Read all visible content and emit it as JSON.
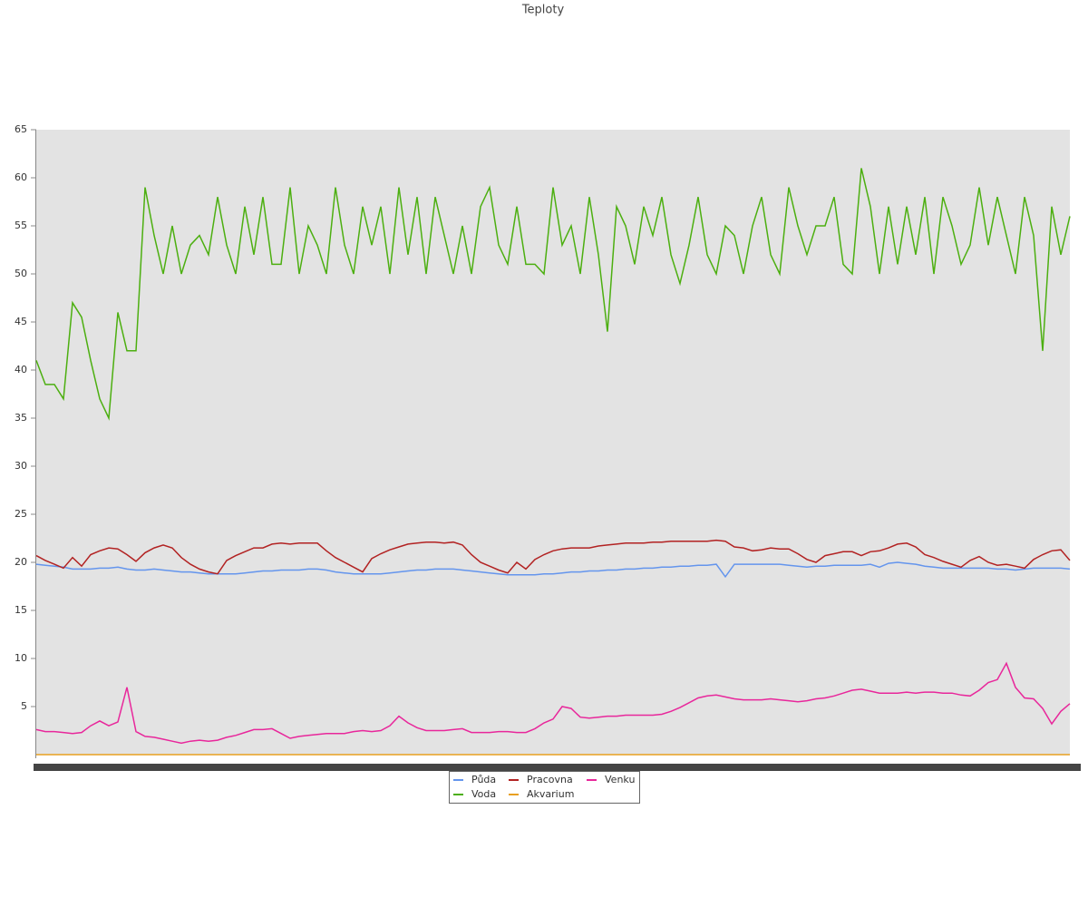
{
  "chart_data": {
    "type": "line",
    "title": "Teploty",
    "categories": [
      null,
      null,
      null,
      null,
      null,
      null,
      null,
      null,
      null,
      null,
      null,
      null,
      null,
      null,
      null,
      null,
      null,
      null,
      null,
      null,
      null,
      null,
      null,
      null,
      null,
      null,
      null,
      null,
      null,
      null,
      null,
      null,
      null,
      null,
      null,
      null,
      null,
      null,
      null,
      null,
      null,
      null,
      null,
      null,
      null,
      null,
      null,
      null,
      null,
      null,
      null,
      null,
      null,
      null,
      null,
      null,
      null,
      null,
      null,
      null,
      null,
      null,
      null,
      null,
      null,
      null,
      null,
      null,
      null,
      null,
      null,
      null,
      null,
      null,
      null,
      null,
      null,
      null,
      null,
      null,
      null,
      null,
      null,
      null,
      null,
      null,
      null,
      null,
      null,
      null,
      null,
      null,
      null,
      null,
      null,
      null,
      null,
      null,
      null,
      null,
      null,
      null,
      null,
      null,
      null,
      null,
      null,
      null,
      null,
      null,
      null,
      null,
      null,
      null,
      null
    ],
    "ylim": [
      0,
      65
    ],
    "yticks": [
      5,
      10,
      15,
      20,
      25,
      30,
      35,
      40,
      45,
      50,
      55,
      60,
      65
    ],
    "series": [
      {
        "name": "Půda",
        "color": "#6495ed",
        "values": [
          19.8,
          19.7,
          19.6,
          19.5,
          19.3,
          19.3,
          19.3,
          19.4,
          19.4,
          19.5,
          19.3,
          19.2,
          19.2,
          19.3,
          19.2,
          19.1,
          19.0,
          19.0,
          18.9,
          18.8,
          18.8,
          18.8,
          18.8,
          18.9,
          19.0,
          19.1,
          19.1,
          19.2,
          19.2,
          19.2,
          19.3,
          19.3,
          19.2,
          19.0,
          18.9,
          18.8,
          18.8,
          18.8,
          18.8,
          18.9,
          19.0,
          19.1,
          19.2,
          19.2,
          19.3,
          19.3,
          19.3,
          19.2,
          19.1,
          19.0,
          18.9,
          18.8,
          18.7,
          18.7,
          18.7,
          18.7,
          18.8,
          18.8,
          18.9,
          19.0,
          19.0,
          19.1,
          19.1,
          19.2,
          19.2,
          19.3,
          19.3,
          19.4,
          19.4,
          19.5,
          19.5,
          19.6,
          19.6,
          19.7,
          19.7,
          19.8,
          18.5,
          19.8,
          19.8,
          19.8,
          19.8,
          19.8,
          19.8,
          19.7,
          19.6,
          19.5,
          19.6,
          19.6,
          19.7,
          19.7,
          19.7,
          19.7,
          19.8,
          19.5,
          19.9,
          20.0,
          19.9,
          19.8,
          19.6,
          19.5,
          19.4,
          19.4,
          19.4,
          19.4,
          19.4,
          19.4,
          19.3,
          19.3,
          19.2,
          19.3,
          19.4,
          19.4,
          19.4,
          19.4,
          19.3
        ]
      },
      {
        "name": "Pracovna",
        "color": "#b22222",
        "values": [
          20.7,
          20.2,
          19.8,
          19.4,
          20.5,
          19.6,
          20.8,
          21.2,
          21.5,
          21.4,
          20.8,
          20.1,
          21,
          21.5,
          21.8,
          21.5,
          20.5,
          19.8,
          19.3,
          19,
          18.8,
          20.2,
          20.7,
          21.1,
          21.5,
          21.5,
          21.9,
          22,
          21.9,
          22,
          22,
          22,
          21.2,
          20.5,
          20,
          19.5,
          19,
          20.4,
          20.9,
          21.3,
          21.6,
          21.9,
          22,
          22.1,
          22.1,
          22,
          22.1,
          21.8,
          20.8,
          20,
          19.6,
          19.2,
          18.9,
          20,
          19.3,
          20.3,
          20.8,
          21.2,
          21.4,
          21.5,
          21.5,
          21.5,
          21.7,
          21.8,
          21.9,
          22,
          22,
          22,
          22.1,
          22.1,
          22.2,
          22.2,
          22.2,
          22.2,
          22.2,
          22.3,
          22.2,
          21.6,
          21.5,
          21.2,
          21.3,
          21.5,
          21.4,
          21.4,
          20.9,
          20.3,
          20,
          20.7,
          20.9,
          21.1,
          21.1,
          20.7,
          21.1,
          21.2,
          21.5,
          21.9,
          22,
          21.6,
          20.8,
          20.5,
          20.1,
          19.8,
          19.5,
          20.2,
          20.6,
          20,
          19.7,
          19.8,
          19.6,
          19.4,
          20.3,
          20.8,
          21.2,
          21.3,
          20.2
        ]
      },
      {
        "name": "Venku",
        "color": "#e8279b",
        "values": [
          2.6,
          2.4,
          2.4,
          2.3,
          2.2,
          2.3,
          3.0,
          3.5,
          3.0,
          3.4,
          7.0,
          2.4,
          1.9,
          1.8,
          1.6,
          1.4,
          1.2,
          1.4,
          1.5,
          1.4,
          1.5,
          1.8,
          2.0,
          2.3,
          2.6,
          2.6,
          2.7,
          2.2,
          1.7,
          1.9,
          2.0,
          2.1,
          2.2,
          2.2,
          2.2,
          2.4,
          2.5,
          2.4,
          2.5,
          3.0,
          4.0,
          3.3,
          2.8,
          2.5,
          2.5,
          2.5,
          2.6,
          2.7,
          2.3,
          2.3,
          2.3,
          2.4,
          2.4,
          2.3,
          2.3,
          2.7,
          3.3,
          3.7,
          5.0,
          4.8,
          3.9,
          3.8,
          3.9,
          4.0,
          4.0,
          4.1,
          4.1,
          4.1,
          4.1,
          4.2,
          4.5,
          4.9,
          5.4,
          5.9,
          6.1,
          6.2,
          6.0,
          5.8,
          5.7,
          5.7,
          5.7,
          5.8,
          5.7,
          5.6,
          5.5,
          5.6,
          5.8,
          5.9,
          6.1,
          6.4,
          6.7,
          6.8,
          6.6,
          6.4,
          6.4,
          6.4,
          6.5,
          6.4,
          6.5,
          6.5,
          6.4,
          6.4,
          6.2,
          6.1,
          6.7,
          7.5,
          7.8,
          9.5,
          7.0,
          5.9,
          5.8,
          4.8,
          3.2,
          4.5,
          5.3
        ]
      },
      {
        "name": "Voda",
        "color": "#4caf10",
        "values": [
          41,
          38.5,
          38.5,
          37,
          47,
          45.5,
          41,
          37,
          35,
          46,
          42,
          42,
          59,
          54,
          50,
          55,
          50,
          53,
          54,
          52,
          58,
          53,
          50,
          57,
          52,
          58,
          51,
          51,
          59,
          50,
          55,
          53,
          50,
          59,
          53,
          50,
          57,
          53,
          57,
          50,
          59,
          52,
          58,
          50,
          58,
          54,
          50,
          55,
          50,
          57,
          59,
          53,
          51,
          57,
          51,
          51,
          50,
          59,
          53,
          55,
          50,
          58,
          52,
          44,
          57,
          55,
          51,
          57,
          54,
          58,
          52,
          49,
          53,
          58,
          52,
          50,
          55,
          54,
          50,
          55,
          58,
          52,
          50,
          59,
          55,
          52,
          55,
          55,
          58,
          51,
          50,
          61,
          57,
          50,
          57,
          51,
          57,
          52,
          58,
          50,
          58,
          55,
          51,
          53,
          59,
          53,
          58,
          54,
          50,
          58,
          54,
          42,
          57,
          52,
          56
        ]
      },
      {
        "name": "Akvarium",
        "color": "#e8a020",
        "values": [
          0,
          0,
          0,
          0,
          0,
          0,
          0,
          0,
          0,
          0,
          0,
          0,
          0,
          0,
          0,
          0,
          0,
          0,
          0,
          0,
          0,
          0,
          0,
          0,
          0,
          0,
          0,
          0,
          0,
          0,
          0,
          0,
          0,
          0,
          0,
          0,
          0,
          0,
          0,
          0,
          0,
          0,
          0,
          0,
          0,
          0,
          0,
          0,
          0,
          0,
          0,
          0,
          0,
          0,
          0,
          0,
          0,
          0,
          0,
          0,
          0,
          0,
          0,
          0,
          0,
          0,
          0,
          0,
          0,
          0,
          0,
          0,
          0,
          0,
          0,
          0,
          0,
          0,
          0,
          0,
          0,
          0,
          0,
          0,
          0,
          0,
          0,
          0,
          0,
          0,
          0,
          0,
          0,
          0,
          0,
          0,
          0,
          0,
          0,
          0,
          0,
          0,
          0,
          0,
          0,
          0,
          0,
          0,
          0,
          0,
          0,
          0,
          0,
          0,
          0
        ]
      }
    ]
  }
}
